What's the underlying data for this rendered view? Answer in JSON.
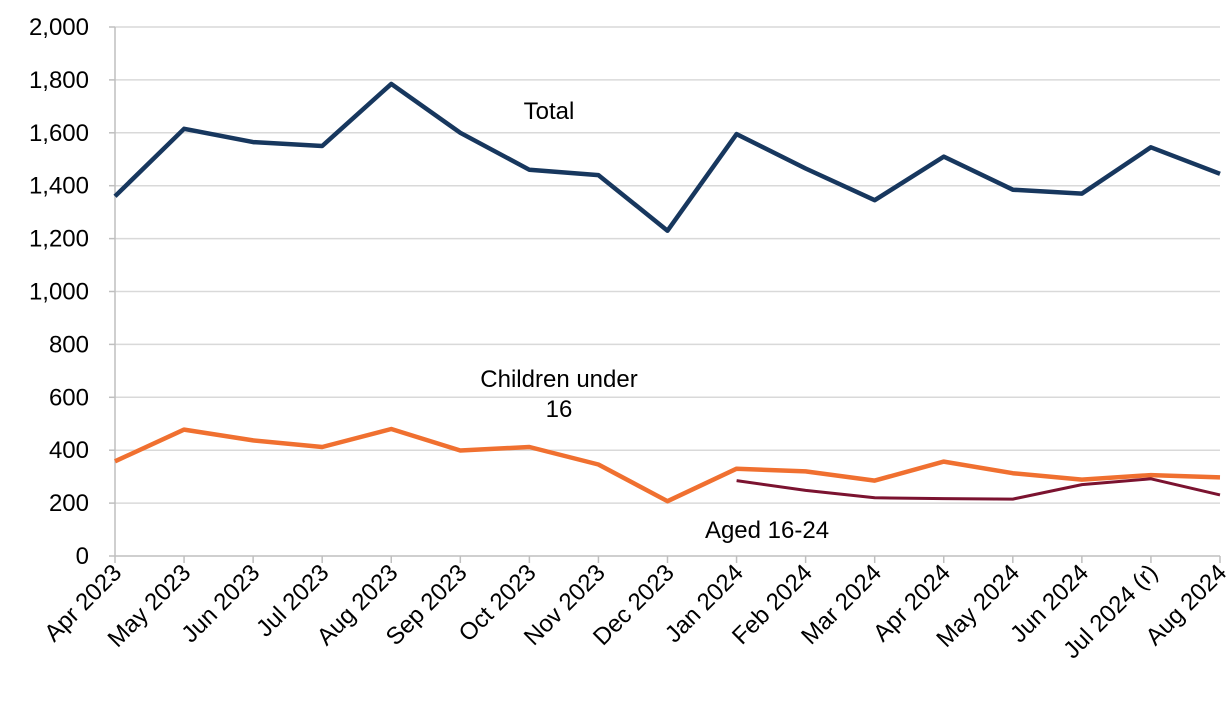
{
  "chart_data": {
    "type": "line",
    "title": "",
    "xlabel": "",
    "ylabel": "",
    "categories": [
      "Apr 2023",
      "May 2023",
      "Jun 2023",
      "Jul 2023",
      "Aug 2023",
      "Sep 2023",
      "Oct 2023",
      "Nov 2023",
      "Dec 2023",
      "Jan 2024",
      "Feb 2024",
      "Mar 2024",
      "Apr 2024",
      "May 2024",
      "Jun 2024",
      "Jul 2024 (r)",
      "Aug 2024"
    ],
    "ylim": [
      0,
      2000
    ],
    "yticks": [
      0,
      200,
      400,
      600,
      800,
      1000,
      1200,
      1400,
      1600,
      1800,
      2000
    ],
    "ytick_labels": [
      "0",
      "200",
      "400",
      "600",
      "800",
      "1,000",
      "1,200",
      "1,400",
      "1,600",
      "1,800",
      "2,000"
    ],
    "grid": true,
    "legend": "none",
    "series": [
      {
        "name": "Total",
        "color": "#17375e",
        "values": [
          1360,
          1615,
          1565,
          1550,
          1785,
          1600,
          1460,
          1440,
          1230,
          1595,
          1465,
          1345,
          1510,
          1385,
          1370,
          1545,
          1445
        ]
      },
      {
        "name": "Children under 16",
        "color": "#f07030",
        "values": [
          358,
          478,
          437,
          412,
          480,
          399,
          412,
          346,
          207,
          330,
          320,
          285,
          357,
          313,
          289,
          306,
          297
        ]
      },
      {
        "name": "Aged 16-24",
        "color": "#7b1330",
        "values": [
          null,
          null,
          null,
          null,
          null,
          null,
          null,
          null,
          null,
          285,
          248,
          220,
          217,
          215,
          270,
          292,
          231
        ]
      }
    ]
  }
}
